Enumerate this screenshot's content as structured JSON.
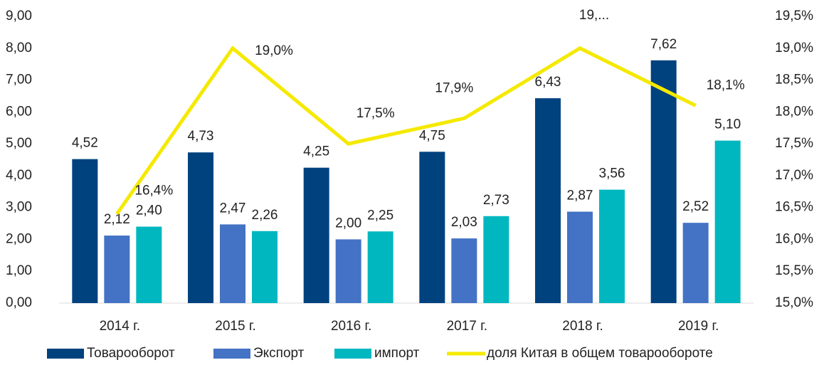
{
  "chart_data": {
    "type": "bar",
    "categories": [
      "2014 г.",
      "2015 г.",
      "2016 г.",
      "2017 г.",
      "2018 г.",
      "2019 г."
    ],
    "series": [
      {
        "name": "Товарооборот",
        "color": "#00427e",
        "values": [
          4.52,
          4.73,
          4.25,
          4.75,
          6.43,
          7.62
        ],
        "value_labels": [
          "4,52",
          "4,73",
          "4,25",
          "4,75",
          "6,43",
          "7,62"
        ]
      },
      {
        "name": "Экспорт",
        "color": "#4472c4",
        "values": [
          2.12,
          2.47,
          2.0,
          2.03,
          2.87,
          2.52
        ],
        "value_labels": [
          "2,12",
          "2,47",
          "2,00",
          "2,03",
          "2,87",
          "2,52"
        ]
      },
      {
        "name": "импорт",
        "color": "#00b7c0",
        "values": [
          2.4,
          2.26,
          2.25,
          2.73,
          3.56,
          5.1
        ],
        "value_labels": [
          "2,40",
          "2,26",
          "2,25",
          "2,73",
          "3,56",
          "5,10"
        ]
      },
      {
        "name": "доля Китая в общем товарообороте",
        "color": "#f5e900",
        "type": "line",
        "axis": "y2",
        "values": [
          16.4,
          19.0,
          17.5,
          17.9,
          19.0,
          18.1
        ],
        "value_labels": [
          "16,4%",
          "19,0%",
          "17,5%",
          "17,9%",
          "19,...",
          "18,1%"
        ]
      }
    ],
    "ylim": [
      0,
      9
    ],
    "yticks": [
      {
        "value": 0,
        "label": "0,00"
      },
      {
        "value": 1,
        "label": "1,00"
      },
      {
        "value": 2,
        "label": "2,00"
      },
      {
        "value": 3,
        "label": "3,00"
      },
      {
        "value": 4,
        "label": "4,00"
      },
      {
        "value": 5,
        "label": "5,00"
      },
      {
        "value": 6,
        "label": "6,00"
      },
      {
        "value": 7,
        "label": "7,00"
      },
      {
        "value": 8,
        "label": "8,00"
      },
      {
        "value": 9,
        "label": "9,00"
      }
    ],
    "y2lim": [
      15,
      19.5
    ],
    "y2ticks": [
      {
        "value": 15,
        "label": "15,0%"
      },
      {
        "value": 15.5,
        "label": "15,5%"
      },
      {
        "value": 16,
        "label": "16,0%"
      },
      {
        "value": 16.5,
        "label": "16,5%"
      },
      {
        "value": 17,
        "label": "17,0%"
      },
      {
        "value": 17.5,
        "label": "17,5%"
      },
      {
        "value": 18,
        "label": "18,0%"
      },
      {
        "value": 18.5,
        "label": "18,5%"
      },
      {
        "value": 19,
        "label": "19,0%"
      },
      {
        "value": 19.5,
        "label": "19,5%"
      }
    ],
    "grid": false,
    "legend": "bottom"
  }
}
